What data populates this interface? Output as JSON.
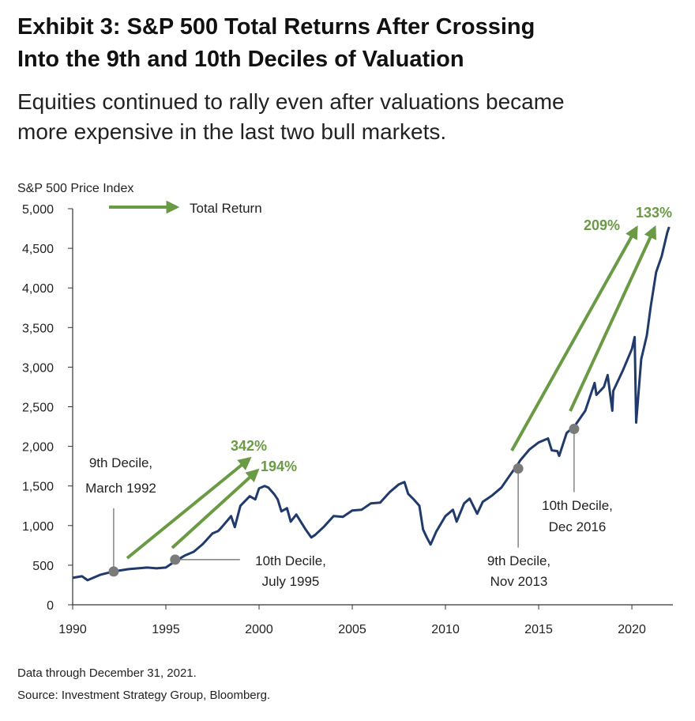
{
  "header": {
    "title_line1": "Exhibit 3: S&P 500 Total Returns After Crossing",
    "title_line2": "Into the 9th and 10th Deciles of Valuation",
    "subtitle_line1": "Equities continued to rally even after valuations became",
    "subtitle_line2": "more expensive in the last two bull markets."
  },
  "colors": {
    "series": "#1f3a6b",
    "arrow": "#6a9a44",
    "marker": "#7a7a7a",
    "axis": "#333333"
  },
  "chart_data": {
    "type": "line",
    "title": "",
    "ylabel": "S&P 500 Price Index",
    "xlabel": "",
    "xlim": [
      1990,
      2022.2
    ],
    "ylim": [
      0,
      5000
    ],
    "xticks": [
      "1990",
      "1995",
      "2000",
      "2005",
      "2010",
      "2015",
      "2020"
    ],
    "yticks": [
      "0",
      "500",
      "1,000",
      "1,500",
      "2,000",
      "2,500",
      "3,000",
      "3,500",
      "4,000",
      "4,500",
      "5,000"
    ],
    "legend": {
      "label": "Total Return",
      "position": "top-left"
    },
    "series": [
      {
        "name": "S&P 500 Price Index",
        "x": [
          1990,
          1990.5,
          1990.8,
          1991,
          1991.5,
          1992,
          1992.2,
          1993,
          1994,
          1994.5,
          1995,
          1995.5,
          1996,
          1996.5,
          1997,
          1997.5,
          1997.8,
          1998,
          1998.5,
          1998.7,
          1999,
          1999.5,
          1999.8,
          2000,
          2000.3,
          2000.5,
          2000.8,
          2001,
          2001.2,
          2001.5,
          2001.7,
          2002,
          2002.5,
          2002.8,
          2003,
          2003.5,
          2004,
          2004.5,
          2005,
          2005.5,
          2006,
          2006.5,
          2007,
          2007.5,
          2007.8,
          2008,
          2008.3,
          2008.6,
          2008.8,
          2009,
          2009.2,
          2009.5,
          2010,
          2010.4,
          2010.6,
          2011,
          2011.3,
          2011.7,
          2012,
          2012.5,
          2013,
          2013.5,
          2013.9,
          2014,
          2014.5,
          2015,
          2015.5,
          2015.7,
          2016,
          2016.1,
          2016.5,
          2016.9,
          2017,
          2017.5,
          2018,
          2018.1,
          2018.5,
          2018.7,
          2018.95,
          2019,
          2019.5,
          2020,
          2020.15,
          2020.23,
          2020.5,
          2020.8,
          2021,
          2021.3,
          2021.6,
          2021.9,
          2022
        ],
        "values": [
          340,
          360,
          310,
          330,
          380,
          410,
          420,
          450,
          470,
          460,
          470,
          550,
          620,
          670,
          770,
          900,
          930,
          980,
          1120,
          980,
          1250,
          1370,
          1330,
          1470,
          1500,
          1480,
          1400,
          1330,
          1180,
          1220,
          1050,
          1140,
          950,
          850,
          880,
          990,
          1120,
          1110,
          1190,
          1200,
          1280,
          1290,
          1420,
          1520,
          1550,
          1400,
          1330,
          1250,
          950,
          850,
          760,
          920,
          1120,
          1200,
          1050,
          1280,
          1340,
          1150,
          1300,
          1380,
          1480,
          1650,
          1780,
          1820,
          1960,
          2050,
          2100,
          1950,
          1940,
          1880,
          2170,
          2250,
          2280,
          2450,
          2800,
          2650,
          2750,
          2900,
          2450,
          2700,
          2950,
          3230,
          3380,
          2300,
          3100,
          3400,
          3750,
          4200,
          4400,
          4700,
          4770
        ]
      }
    ],
    "markers": [
      {
        "x": 1992.2,
        "y": 420,
        "label_line1": "9th Decile,",
        "label_line2": "March 1992"
      },
      {
        "x": 1995.5,
        "y": 570,
        "label_line1": "10th Decile,",
        "label_line2": "July 1995"
      },
      {
        "x": 2013.9,
        "y": 1720,
        "label_line1": "9th Decile,",
        "label_line2": "Nov 2013"
      },
      {
        "x": 2016.9,
        "y": 2220,
        "label_line1": "10th Decile,",
        "label_line2": "Dec 2016"
      }
    ],
    "annotations": [
      {
        "text": "342%",
        "from_marker": "9th Decile, March 1992"
      },
      {
        "text": "194%",
        "from_marker": "10th Decile, July 1995"
      },
      {
        "text": "209%",
        "from_marker": "9th Decile, Nov 2013"
      },
      {
        "text": "133%",
        "from_marker": "10th Decile, Dec 2016"
      }
    ]
  },
  "footnotes": {
    "data_note": "Data through December 31, 2021.",
    "source": "Source: Investment Strategy Group, Bloomberg."
  }
}
